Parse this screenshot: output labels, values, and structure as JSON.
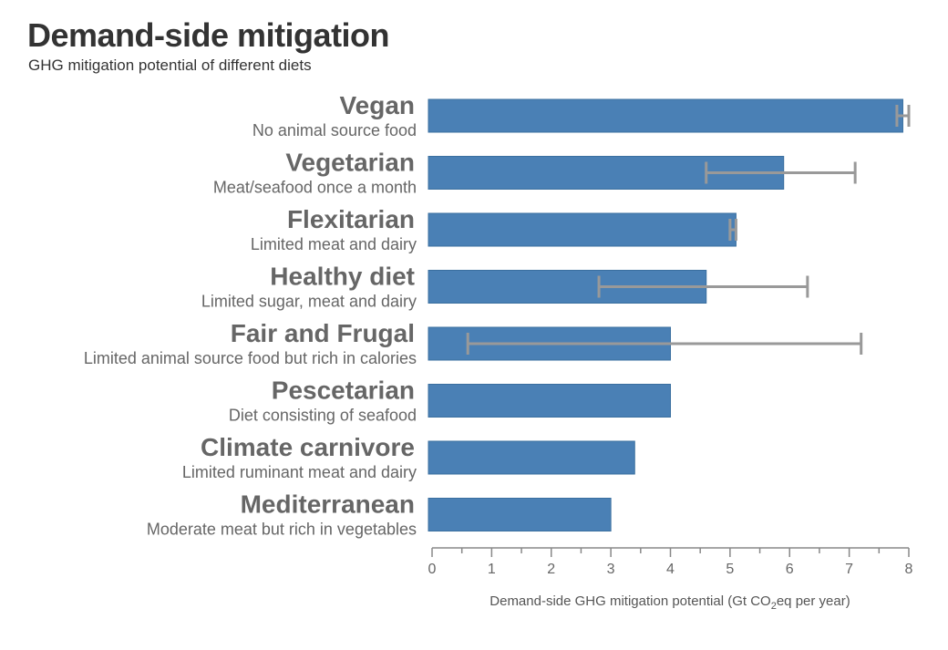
{
  "title": "Demand-side mitigation",
  "subtitle": "GHG mitigation potential of different diets",
  "colors": {
    "bar": "#4a80b5",
    "bar_edge": "#3a6f9f",
    "error_bar": "#999999",
    "axis": "#888888"
  },
  "chart_data": {
    "type": "bar",
    "orientation": "horizontal",
    "categories": [
      "Vegan",
      "Vegetarian",
      "Flexitarian",
      "Healthy diet",
      "Fair and Frugal",
      "Pescetarian",
      "Climate carnivore",
      "Mediterranean"
    ],
    "descriptions": [
      "No animal source food",
      "Meat/seafood once a month",
      "Limited meat and dairy",
      "Limited sugar, meat and dairy",
      "Limited animal source food but rich in calories",
      "Diet consisting of seafood",
      "Limited ruminant meat and dairy",
      "Moderate meat but rich in vegetables"
    ],
    "values": [
      7.9,
      5.9,
      5.1,
      4.6,
      4.0,
      4.0,
      3.4,
      3.0
    ],
    "error_low": [
      7.8,
      4.6,
      5.0,
      2.8,
      0.6,
      null,
      null,
      null
    ],
    "error_high": [
      8.0,
      7.1,
      5.1,
      6.3,
      7.2,
      null,
      null,
      null
    ],
    "xlim": [
      0,
      8
    ],
    "xticks": [
      "0",
      "1",
      "2",
      "3",
      "4",
      "5",
      "6",
      "7",
      "8"
    ],
    "xlabel_prefix": "Demand-side GHG mitigation potential (Gt CO",
    "xlabel_sub": "2",
    "xlabel_suffix": "eq per year)",
    "grid": false
  }
}
